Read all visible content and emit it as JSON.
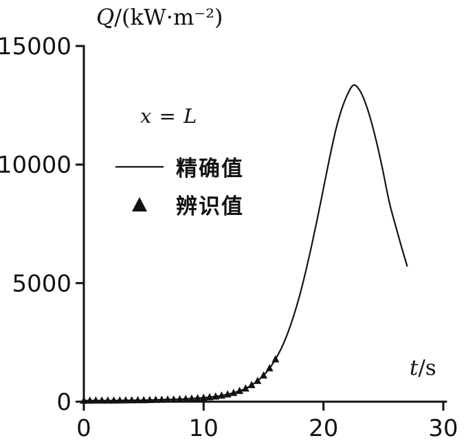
{
  "figure": {
    "background": "#ffffff",
    "ink_color": "#121212"
  },
  "chart_data": {
    "type": "line",
    "title": "",
    "ylabel_var": "Q",
    "ylabel_rest": "/(kW·m⁻²)",
    "xlabel_var": "t",
    "xlabel_rest": "/s",
    "annotation": "x = L",
    "xlim": [
      0,
      30
    ],
    "ylim": [
      0,
      15000
    ],
    "xticks": [
      "0",
      "10",
      "20",
      "30"
    ],
    "xtick_values": [
      0,
      10,
      20,
      30
    ],
    "yticks": [
      "0",
      "5000",
      "10000",
      "15000"
    ],
    "ytick_values": [
      0,
      5000,
      10000,
      15000
    ],
    "grid": false,
    "legend_position": "inside-upper-left",
    "series": [
      {
        "name": "精确值",
        "type": "line",
        "marker": "none",
        "x": [
          0,
          1,
          2,
          3,
          4,
          5,
          6,
          7,
          8,
          9,
          10,
          10.5,
          11,
          11.5,
          12,
          12.5,
          13,
          13.5,
          14,
          14.5,
          15,
          15.5,
          16,
          16.5,
          17,
          17.5,
          18,
          18.5,
          19,
          19.5,
          20,
          20.5,
          21,
          21.5,
          22,
          22.5,
          23,
          23.5,
          24,
          24.5,
          25,
          25.5,
          26,
          26.5,
          27
        ],
        "y": [
          46,
          48,
          50,
          54,
          60,
          68,
          78,
          90,
          105,
          130,
          165,
          190,
          220,
          260,
          310,
          375,
          455,
          560,
          700,
          880,
          1110,
          1410,
          1790,
          2270,
          2870,
          3600,
          4450,
          5450,
          6550,
          7750,
          9000,
          10250,
          11400,
          12300,
          12950,
          13350,
          13150,
          12600,
          11800,
          10800,
          9650,
          8400,
          7450,
          6550,
          5700
        ]
      },
      {
        "name": "辨识值",
        "type": "scatter",
        "marker": "triangle-up-filled",
        "x": [
          0,
          0.5,
          1,
          1.5,
          2,
          2.5,
          3,
          3.5,
          4,
          4.5,
          5,
          5.5,
          6,
          6.5,
          7,
          7.5,
          8,
          8.5,
          9,
          9.5,
          10,
          10.5,
          11,
          11.5,
          12,
          12.5,
          13,
          13.5,
          14,
          14.5,
          15,
          15.5,
          16
        ],
        "y": [
          46,
          47,
          48,
          49,
          50,
          52,
          54,
          57,
          60,
          64,
          68,
          73,
          78,
          84,
          90,
          97,
          105,
          117,
          130,
          147,
          165,
          190,
          220,
          260,
          310,
          375,
          455,
          560,
          700,
          880,
          1110,
          1410,
          1790
        ]
      }
    ]
  }
}
